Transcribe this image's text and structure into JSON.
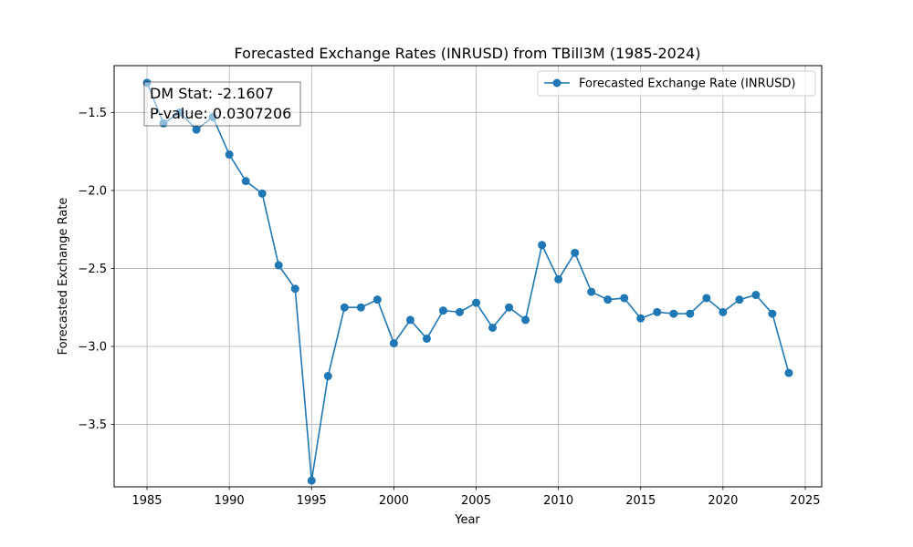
{
  "chart_data": {
    "type": "line",
    "title": "Forecasted Exchange Rates (INRUSD) from TBill3M (1985-2024)",
    "xlabel": "Year",
    "ylabel": "Forecasted Exchange Rate",
    "xlim": [
      1983,
      2026
    ],
    "ylim": [
      -3.9,
      -1.2
    ],
    "xticks": [
      1985,
      1990,
      1995,
      2000,
      2005,
      2010,
      2015,
      2020,
      2025
    ],
    "yticks": [
      -3.5,
      -3.0,
      -2.5,
      -2.0,
      -1.5
    ],
    "ytick_labels": [
      "−3.5",
      "−3.0",
      "−2.5",
      "−2.0",
      "−1.5"
    ],
    "grid": true,
    "legend_position": "top-right",
    "series": [
      {
        "name": "Forecasted Exchange Rate (INRUSD)",
        "color": "#1f77b4",
        "marker": "circle",
        "x": [
          1985,
          1986,
          1987,
          1988,
          1989,
          1990,
          1991,
          1992,
          1993,
          1994,
          1995,
          1996,
          1997,
          1998,
          1999,
          2000,
          2001,
          2002,
          2003,
          2004,
          2005,
          2006,
          2007,
          2008,
          2009,
          2010,
          2011,
          2012,
          2013,
          2014,
          2015,
          2016,
          2017,
          2018,
          2019,
          2020,
          2021,
          2022,
          2023,
          2024
        ],
        "y": [
          -1.31,
          -1.57,
          -1.5,
          -1.61,
          -1.53,
          -1.77,
          -1.94,
          -2.02,
          -2.48,
          -2.63,
          -3.86,
          -3.19,
          -2.75,
          -2.75,
          -2.7,
          -2.98,
          -2.83,
          -2.95,
          -2.77,
          -2.78,
          -2.72,
          -2.88,
          -2.75,
          -2.83,
          -2.35,
          -2.57,
          -2.4,
          -2.65,
          -2.7,
          -2.69,
          -2.82,
          -2.78,
          -2.79,
          -2.79,
          -2.69,
          -2.78,
          -2.7,
          -2.67,
          -2.79,
          -3.17
        ]
      }
    ],
    "annotations": [
      "DM Stat: -2.1607",
      "P-value: 0.0307206"
    ]
  }
}
